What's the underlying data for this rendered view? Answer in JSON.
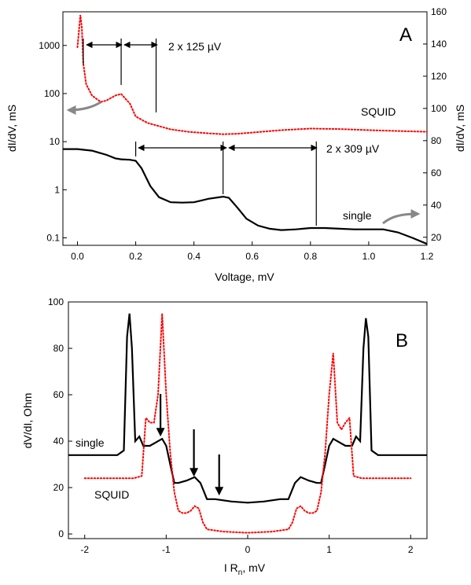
{
  "chart_data": [
    {
      "type": "line",
      "panel_label": "A",
      "xlabel": "Voltage, mV",
      "ylabel": "dI/dV, mS",
      "ylabel_right": "dI/dV, mS",
      "xlim": [
        -0.05,
        1.2
      ],
      "ylim": [
        0.07,
        5000
      ],
      "ylim_right": [
        15,
        160
      ],
      "y_scale": "log",
      "x_ticks": [
        "0.0",
        "0.2",
        "0.4",
        "0.6",
        "0.8",
        "1.0",
        "1.2"
      ],
      "y_ticks": [
        "0.1",
        "1",
        "10",
        "100",
        "1000"
      ],
      "y_ticks_right": [
        "20",
        "40",
        "60",
        "80",
        "100",
        "120",
        "140",
        "160"
      ],
      "series": [
        {
          "name": "SQUID",
          "axis": "right",
          "color": "#ff0000",
          "style": "dotted",
          "x": [
            0.0,
            0.01,
            0.015,
            0.02,
            0.03,
            0.05,
            0.08,
            0.1,
            0.13,
            0.15,
            0.18,
            0.2,
            0.24,
            0.28,
            0.32,
            0.38,
            0.45,
            0.5,
            0.55,
            0.6,
            0.7,
            0.8,
            0.9,
            1.0,
            1.1,
            1.2
          ],
          "y": [
            138,
            158,
            150,
            128,
            115,
            108,
            104,
            105,
            108,
            109,
            103,
            95,
            91,
            89,
            87,
            85.5,
            84.5,
            84,
            84.3,
            85,
            86.5,
            87.5,
            87.2,
            86.5,
            86,
            85.5
          ]
        },
        {
          "name": "single",
          "axis": "left",
          "color": "#000000",
          "style": "solid",
          "x": [
            -0.05,
            0.0,
            0.05,
            0.1,
            0.13,
            0.15,
            0.18,
            0.2,
            0.22,
            0.25,
            0.28,
            0.32,
            0.36,
            0.4,
            0.45,
            0.5,
            0.52,
            0.55,
            0.58,
            0.62,
            0.66,
            0.7,
            0.75,
            0.8,
            0.85,
            0.9,
            0.95,
            1.0,
            1.05,
            1.1,
            1.15,
            1.2
          ],
          "y": [
            7.0,
            7.0,
            6.5,
            5.3,
            4.5,
            4.3,
            4.2,
            4.0,
            2.8,
            1.2,
            0.7,
            0.55,
            0.54,
            0.55,
            0.65,
            0.72,
            0.68,
            0.42,
            0.25,
            0.18,
            0.155,
            0.145,
            0.15,
            0.16,
            0.16,
            0.155,
            0.15,
            0.15,
            0.15,
            0.13,
            0.1,
            0.075
          ]
        }
      ],
      "annotations": [
        {
          "text": "2 x 125 µV"
        },
        {
          "text": "2 x 309 µV"
        },
        {
          "text": "SQUID"
        },
        {
          "text": "single"
        }
      ],
      "marker_lines_x": [
        0.02,
        0.15,
        0.27,
        0.2,
        0.5,
        0.82
      ]
    },
    {
      "type": "line",
      "panel_label": "B",
      "xlabel_main": "I R",
      "xlabel_sub": "n",
      "xlabel_unit": ", mV",
      "ylabel": "dV/dI, Ohm",
      "xlim": [
        -2.2,
        2.2
      ],
      "ylim": [
        -2,
        100
      ],
      "x_ticks": [
        "-2",
        "-1",
        "0",
        "1",
        "2"
      ],
      "y_ticks": [
        "0",
        "20",
        "40",
        "60",
        "80",
        "100"
      ],
      "series": [
        {
          "name": "single",
          "color": "#000000",
          "style": "solid",
          "x": [
            -2.2,
            -1.8,
            -1.6,
            -1.52,
            -1.48,
            -1.45,
            -1.42,
            -1.38,
            -1.33,
            -1.28,
            -1.2,
            -1.1,
            -1.05,
            -1.0,
            -0.95,
            -0.9,
            -0.85,
            -0.75,
            -0.65,
            -0.58,
            -0.5,
            -0.4,
            -0.2,
            0.0,
            0.2,
            0.4,
            0.5,
            0.58,
            0.65,
            0.75,
            0.85,
            0.9,
            0.95,
            1.0,
            1.05,
            1.1,
            1.2,
            1.28,
            1.33,
            1.38,
            1.42,
            1.45,
            1.48,
            1.52,
            1.6,
            1.8,
            2.2
          ],
          "y": [
            34,
            34,
            34,
            36,
            85,
            95,
            80,
            40,
            42,
            38,
            38,
            40,
            41,
            38,
            30,
            22,
            22,
            23,
            24.5,
            22,
            15,
            15,
            14,
            13.5,
            14,
            15,
            15,
            22,
            24.5,
            23,
            22,
            22,
            30,
            38,
            41,
            40,
            38,
            38,
            42,
            40,
            80,
            93,
            85,
            36,
            34,
            34,
            34
          ]
        },
        {
          "name": "SQUID",
          "color": "#ff0000",
          "style": "dotted",
          "x": [
            -2.0,
            -1.6,
            -1.4,
            -1.3,
            -1.25,
            -1.2,
            -1.15,
            -1.1,
            -1.05,
            -1.0,
            -0.95,
            -0.9,
            -0.85,
            -0.8,
            -0.75,
            -0.7,
            -0.65,
            -0.6,
            -0.55,
            -0.5,
            -0.3,
            0.0,
            0.3,
            0.5,
            0.55,
            0.6,
            0.65,
            0.7,
            0.75,
            0.8,
            0.85,
            0.9,
            0.95,
            1.0,
            1.05,
            1.1,
            1.15,
            1.2,
            1.25,
            1.3,
            1.4,
            1.6,
            2.0
          ],
          "y": [
            24,
            24,
            24,
            25,
            50,
            48,
            48,
            60,
            95,
            60,
            35,
            18,
            10,
            9,
            9,
            10,
            12,
            11,
            5,
            2,
            1,
            0.5,
            1,
            2,
            5,
            11,
            12,
            10,
            9,
            9,
            10,
            18,
            35,
            60,
            78,
            48,
            45,
            48,
            50,
            25,
            24,
            24,
            24
          ]
        }
      ],
      "arrows_x": [
        -1.07,
        -0.66,
        -0.35
      ],
      "annotations": [
        {
          "text": "single"
        },
        {
          "text": "SQUID"
        }
      ]
    }
  ]
}
